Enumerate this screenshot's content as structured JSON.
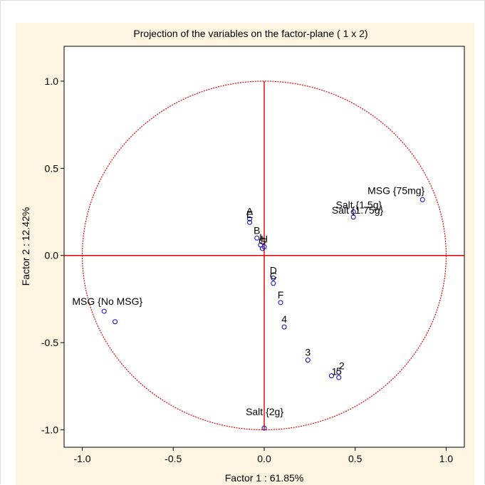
{
  "chart_data": {
    "type": "scatter",
    "title": "Projection of the variables on the factor-plane (  1 x   2)",
    "xlabel": "Factor 1 : 61.85%",
    "ylabel": "Factor 2 : 12.42%",
    "xlim": [
      -1.1,
      1.1
    ],
    "ylim": [
      -1.1,
      1.2
    ],
    "xticks": [
      -1.0,
      -0.5,
      0.0,
      0.5,
      1.0
    ],
    "xtick_labels": [
      "-1.0",
      "-0.5",
      "0.0",
      "0.5",
      "1.0"
    ],
    "yticks": [
      -1.0,
      -0.5,
      0.0,
      0.5,
      1.0
    ],
    "ytick_labels": [
      "-1.0",
      "-0.5",
      "0.0",
      "0.5",
      "1.0"
    ],
    "grid": false,
    "unit_circle": true,
    "crosshair_lines": true,
    "colors": {
      "points": "#0000cc",
      "circle": "#e00000",
      "background": "#fdf5e1",
      "plot_area": "#ffffff"
    },
    "points": [
      {
        "label": "MSG {75mg}",
        "x": 0.87,
        "y": 0.32
      },
      {
        "label": "Salt {1.5g}",
        "x": 0.49,
        "y": 0.25
      },
      {
        "label": "Salt {1.75g}",
        "x": 0.49,
        "y": 0.22
      },
      {
        "label": "MSG {No MSG}",
        "x": -0.88,
        "y": -0.32
      },
      {
        "label": "",
        "x": -0.82,
        "y": -0.38
      },
      {
        "label": "Salt {2g}",
        "x": 0.0,
        "y": -0.99
      },
      {
        "label": "A",
        "x": -0.08,
        "y": 0.21
      },
      {
        "label": "E",
        "x": -0.08,
        "y": 0.19
      },
      {
        "label": "B",
        "x": -0.04,
        "y": 0.1
      },
      {
        "label": "I",
        "x": -0.02,
        "y": 0.06
      },
      {
        "label": "G",
        "x": -0.01,
        "y": 0.04
      },
      {
        "label": "H",
        "x": 0.0,
        "y": 0.05
      },
      {
        "label": "D",
        "x": 0.05,
        "y": -0.13
      },
      {
        "label": "C",
        "x": 0.05,
        "y": -0.16
      },
      {
        "label": "F",
        "x": 0.09,
        "y": -0.27
      },
      {
        "label": "4",
        "x": 0.11,
        "y": -0.41
      },
      {
        "label": "3",
        "x": 0.24,
        "y": -0.6
      },
      {
        "label": "2",
        "x": 0.41,
        "y": -0.67
      },
      {
        "label": "1",
        "x": 0.37,
        "y": -0.69
      },
      {
        "label": "5",
        "x": 0.41,
        "y": -0.7
      }
    ]
  }
}
